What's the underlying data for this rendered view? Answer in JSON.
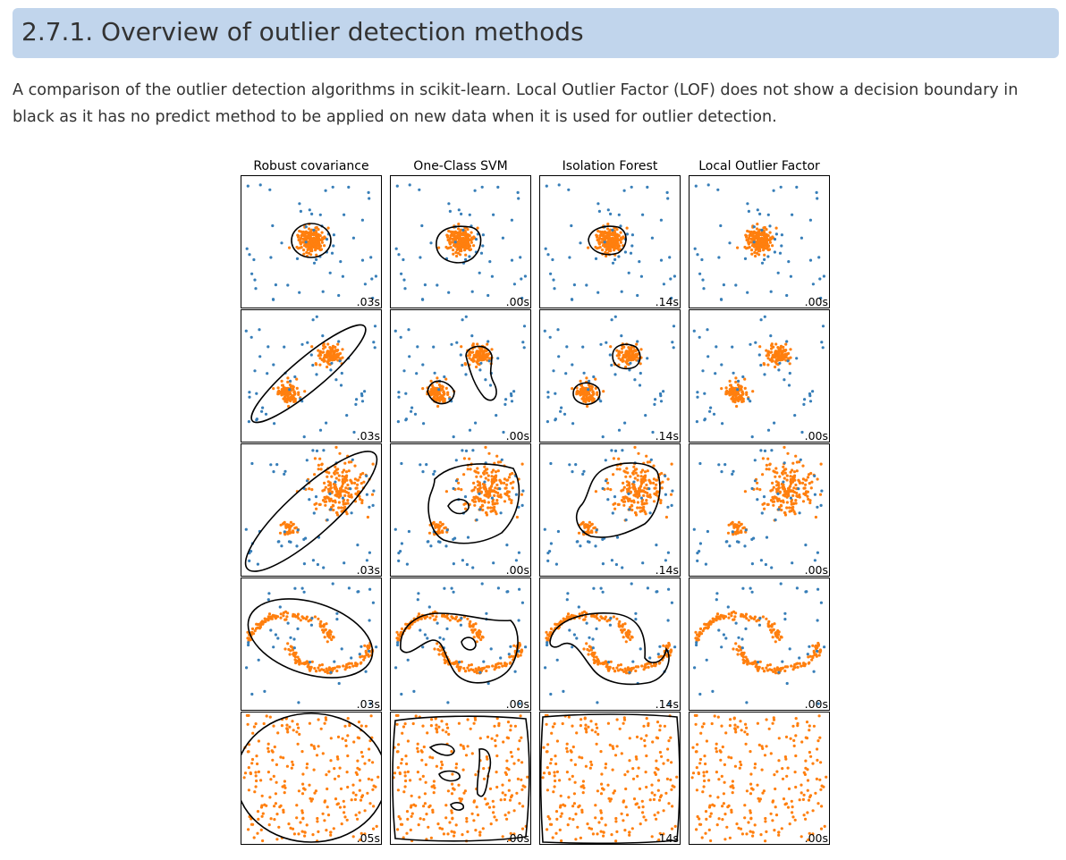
{
  "page": {
    "title": "2.7.1. Overview of outlier detection methods",
    "intro": "A comparison of the outlier detection algorithms in scikit-learn. Local Outlier Factor (LOF) does not show a decision boundary in black as it has no predict method to be applied on new data when it is used for outlier detection."
  },
  "figure": {
    "columns": [
      "Robust covariance",
      "One-Class SVM",
      "Isolation Forest",
      "Local Outlier Factor"
    ],
    "times": [
      [
        ".03s",
        ".00s",
        ".14s",
        ".00s"
      ],
      [
        ".03s",
        ".00s",
        ".14s",
        ".00s"
      ],
      [
        ".03s",
        ".00s",
        ".14s",
        ".00s"
      ],
      [
        ".03s",
        ".00s",
        ".14s",
        ".00s"
      ],
      [
        ".05s",
        ".00s",
        ".14s",
        ".00s"
      ]
    ],
    "colors": {
      "inlier": "#ff7f0e",
      "outlier": "#377eb8",
      "boundary": "#000000",
      "frame": "#000000"
    },
    "datasets": [
      "single-blob",
      "two-blobs",
      "two-blobs-imbalanced",
      "two-moons",
      "uniform"
    ]
  }
}
